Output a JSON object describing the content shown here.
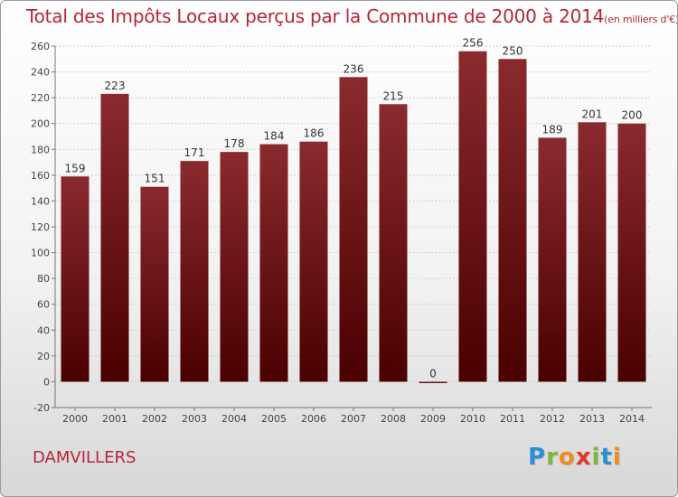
{
  "chart_data": {
    "type": "bar",
    "title": "Total des Impôts Locaux perçus par la Commune de 2000 à 2014",
    "subtitle": "(en milliers d'€)",
    "categories": [
      "2000",
      "2001",
      "2002",
      "2003",
      "2004",
      "2005",
      "2006",
      "2007",
      "2008",
      "2009",
      "2010",
      "2011",
      "2012",
      "2013",
      "2014"
    ],
    "values": [
      159,
      223,
      151,
      171,
      178,
      184,
      186,
      236,
      215,
      0,
      256,
      250,
      189,
      201,
      200
    ],
    "ylim": [
      -20,
      260
    ],
    "yticks": [
      -20,
      0,
      20,
      40,
      60,
      80,
      100,
      120,
      140,
      160,
      180,
      200,
      220,
      240,
      260
    ],
    "xlabel": "",
    "ylabel": "",
    "grid": true,
    "bar_color_top": "#8a2a2f",
    "bar_color_bottom": "#4a0000"
  },
  "footer": {
    "commune": "DAMVILLERS",
    "logo_letters": [
      {
        "char": "P",
        "color": "#2b8fd6"
      },
      {
        "char": "r",
        "color": "#7ab83a"
      },
      {
        "char": "o",
        "color": "#f08c1e"
      },
      {
        "char": "x",
        "color": "#e4352b"
      },
      {
        "char": "i",
        "color": "#7ab83a"
      },
      {
        "char": "t",
        "color": "#2b8fd6"
      },
      {
        "char": "i",
        "color": "#f08c1e"
      }
    ]
  }
}
